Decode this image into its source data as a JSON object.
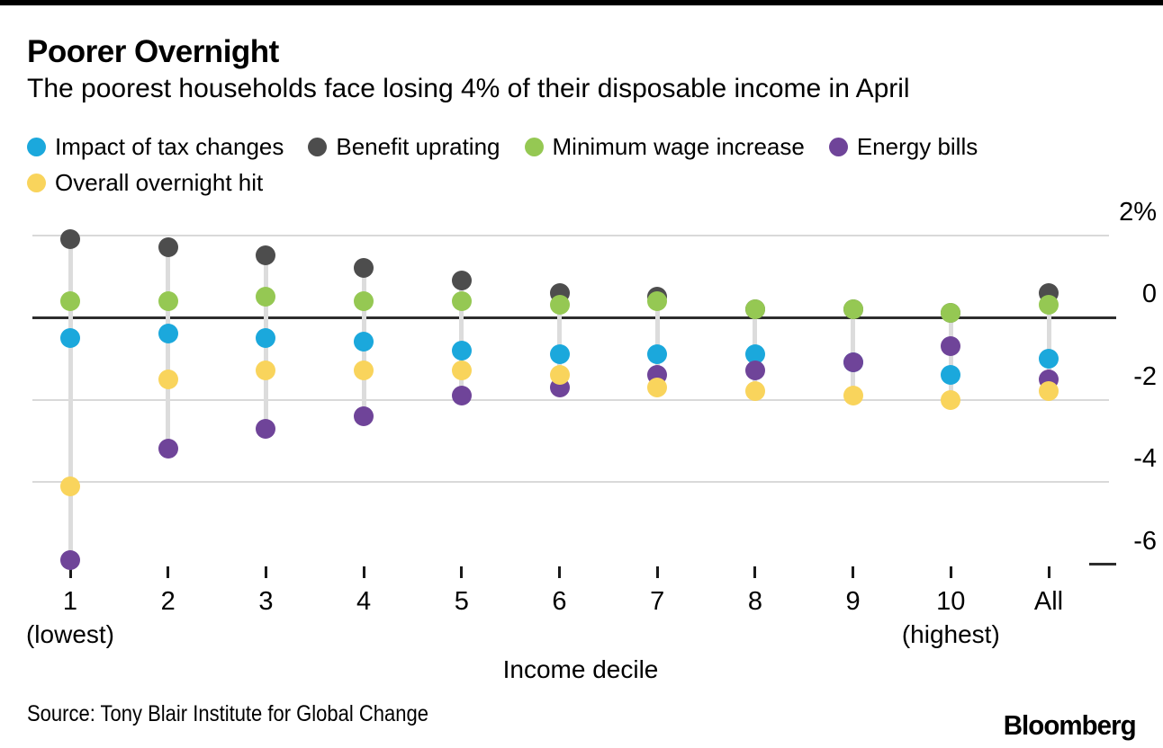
{
  "chart_data": {
    "type": "scatter",
    "title": "Poorer Overnight",
    "subtitle": "The poorest households face losing 4% of their disposable income in April",
    "xlabel": "Income decile",
    "legend_position": "top",
    "grid": "horizontal",
    "ylim": [
      -6.5,
      2.3
    ],
    "categories": [
      "1",
      "2",
      "3",
      "4",
      "5",
      "6",
      "7",
      "8",
      "9",
      "10",
      "All"
    ],
    "category_sublabels": {
      "0": "(lowest)",
      "9": "(highest)"
    },
    "yticks": [
      {
        "label": "2%",
        "value": 2,
        "line": "solid-light"
      },
      {
        "label": "0",
        "value": 0,
        "line": "solid-dark"
      },
      {
        "label": "-2",
        "value": -2,
        "line": "solid-light"
      },
      {
        "label": "-4",
        "value": -4,
        "line": "solid-light"
      },
      {
        "label": "-6",
        "value": -6,
        "line": "tick-only"
      }
    ],
    "series": [
      {
        "name": "Impact of tax changes",
        "color": "#1ba8dc",
        "values": [
          -0.5,
          -0.4,
          -0.5,
          -0.6,
          -0.8,
          -0.9,
          -0.9,
          -0.9,
          -1.1,
          -1.4,
          -1.0
        ]
      },
      {
        "name": "Benefit uprating",
        "color": "#4d4d4d",
        "values": [
          1.9,
          1.7,
          1.5,
          1.2,
          0.9,
          0.6,
          0.5,
          0.2,
          0.2,
          0.1,
          0.6
        ]
      },
      {
        "name": "Minimum wage increase",
        "color": "#95c853",
        "values": [
          0.4,
          0.4,
          0.5,
          0.4,
          0.4,
          0.3,
          0.4,
          0.2,
          0.2,
          0.1,
          0.3
        ]
      },
      {
        "name": "Energy bills",
        "color": "#6f4499",
        "values": [
          -5.9,
          -3.2,
          -2.7,
          -2.4,
          -1.9,
          -1.7,
          -1.4,
          -1.3,
          -1.1,
          -0.7,
          -1.5
        ]
      },
      {
        "name": "Overall overnight hit",
        "color": "#f9d45c",
        "values": [
          -4.1,
          -1.5,
          -1.3,
          -1.3,
          -1.3,
          -1.4,
          -1.7,
          -1.8,
          -1.9,
          -2.0,
          -1.8
        ]
      }
    ]
  },
  "footer": {
    "source": "Source: Tony Blair Institute for Global Change",
    "brand": "Bloomberg"
  }
}
